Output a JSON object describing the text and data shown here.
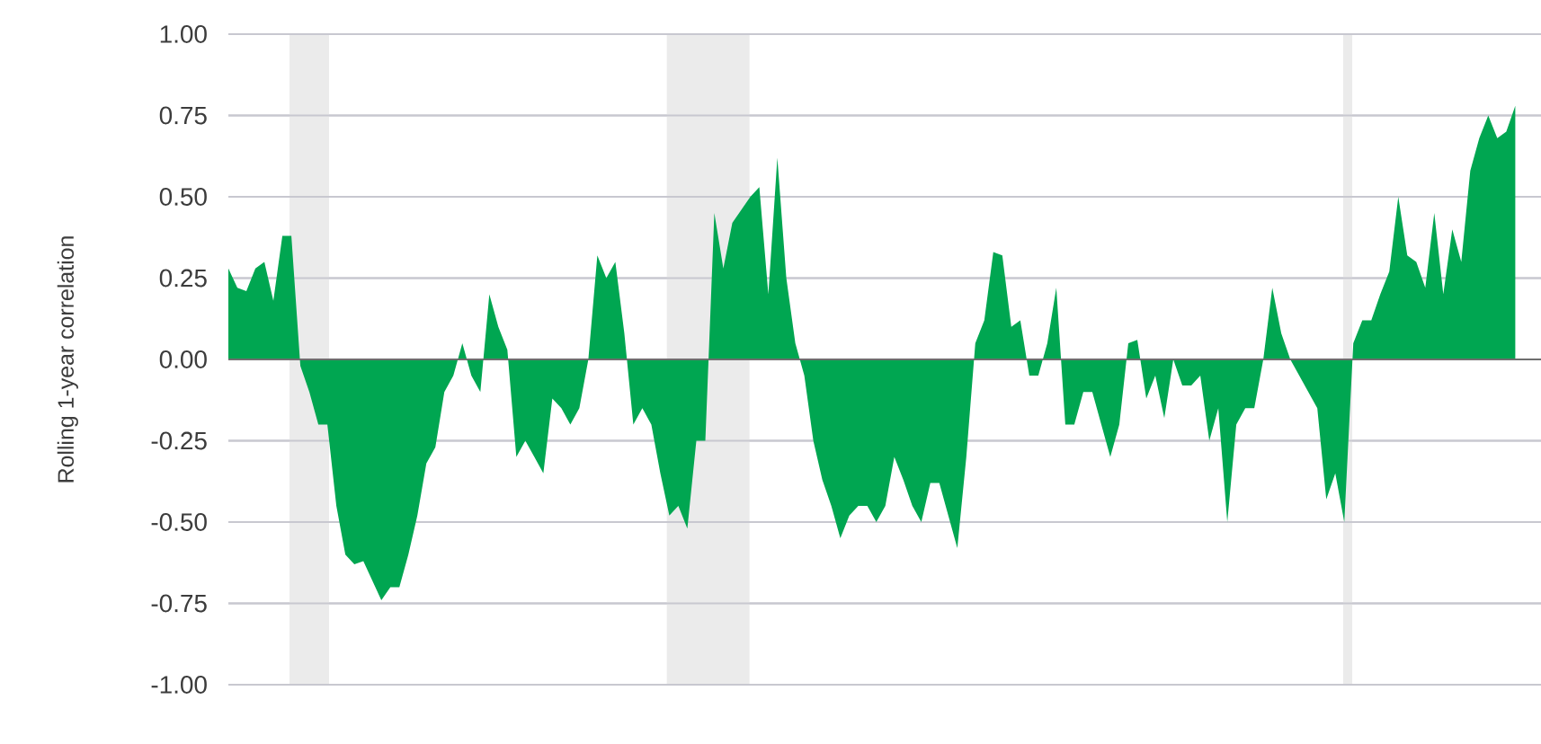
{
  "chart_data": {
    "type": "area",
    "ylabel": "Rolling 1-year correlation",
    "categories": [
      null,
      null,
      null,
      null,
      null,
      null,
      null,
      null,
      null,
      null,
      null,
      null,
      null,
      null,
      null,
      null,
      null,
      null,
      null,
      null,
      null,
      null,
      null,
      null,
      null,
      null,
      null,
      null,
      null,
      null,
      null,
      null,
      null,
      null,
      null,
      null,
      null,
      null,
      null,
      null,
      null,
      null,
      null,
      null,
      null,
      null,
      null,
      null,
      null,
      null,
      null,
      null,
      null,
      null,
      null,
      null,
      null,
      null,
      null,
      null,
      null,
      null,
      null,
      null,
      null,
      null,
      null,
      null,
      null,
      null,
      null,
      null,
      null,
      null,
      null,
      null,
      null,
      null,
      null,
      null,
      null,
      null,
      null,
      null,
      null,
      null,
      null,
      null,
      null,
      null,
      null,
      null,
      null,
      null,
      null,
      null,
      null,
      null,
      null,
      null,
      null,
      null,
      null,
      null,
      null,
      null,
      null,
      null,
      null,
      null,
      null,
      null,
      null,
      null,
      null,
      null,
      null,
      null,
      null,
      null,
      null,
      null,
      null,
      null,
      null,
      null,
      null,
      null,
      null,
      null,
      null,
      null,
      null,
      null,
      null,
      null,
      null,
      null,
      null,
      null,
      null,
      null,
      null,
      null
    ],
    "values": [
      0.28,
      0.22,
      0.21,
      0.28,
      0.3,
      0.18,
      0.38,
      0.38,
      -0.02,
      -0.1,
      -0.2,
      -0.2,
      -0.45,
      -0.6,
      -0.63,
      -0.62,
      -0.68,
      -0.74,
      -0.7,
      -0.7,
      -0.6,
      -0.48,
      -0.32,
      -0.27,
      -0.1,
      -0.05,
      0.05,
      -0.05,
      -0.1,
      0.2,
      0.1,
      0.03,
      -0.3,
      -0.25,
      -0.3,
      -0.35,
      -0.12,
      -0.15,
      -0.2,
      -0.15,
      0.0,
      0.32,
      0.25,
      0.3,
      0.08,
      -0.2,
      -0.15,
      -0.2,
      -0.35,
      -0.48,
      -0.45,
      -0.52,
      -0.25,
      -0.25,
      0.45,
      0.28,
      0.42,
      0.46,
      0.5,
      0.53,
      0.2,
      0.62,
      0.25,
      0.05,
      -0.05,
      -0.25,
      -0.37,
      -0.45,
      -0.55,
      -0.48,
      -0.45,
      -0.45,
      -0.5,
      -0.45,
      -0.3,
      -0.37,
      -0.45,
      -0.5,
      -0.38,
      -0.38,
      -0.48,
      -0.58,
      -0.3,
      0.05,
      0.12,
      0.33,
      0.32,
      0.1,
      0.12,
      -0.05,
      -0.05,
      0.05,
      0.22,
      -0.2,
      -0.2,
      -0.1,
      -0.1,
      -0.2,
      -0.3,
      -0.2,
      0.05,
      0.06,
      -0.12,
      -0.05,
      -0.18,
      0.0,
      -0.08,
      -0.08,
      -0.05,
      -0.25,
      -0.15,
      -0.5,
      -0.2,
      -0.15,
      -0.15,
      0.0,
      0.22,
      0.08,
      0.0,
      -0.05,
      -0.1,
      -0.15,
      -0.43,
      -0.35,
      -0.5,
      0.05,
      0.12,
      0.12,
      0.2,
      0.27,
      0.5,
      0.32,
      0.3,
      0.22,
      0.45,
      0.2,
      0.4,
      0.3,
      0.58,
      0.68,
      0.75,
      0.68,
      0.7,
      0.78
    ],
    "color": "#00a651",
    "ylim": [
      -1,
      1
    ],
    "yticks": [
      {
        "value": -1,
        "label": "-1.00"
      },
      {
        "value": -0.75,
        "label": "-0.75"
      },
      {
        "value": -0.5,
        "label": "-0.50"
      },
      {
        "value": -0.25,
        "label": "-0.25"
      },
      {
        "value": 0,
        "label": "0.00"
      },
      {
        "value": 0.25,
        "label": "0.25"
      },
      {
        "value": 0.5,
        "label": "0.50"
      },
      {
        "value": 0.75,
        "label": "0.75"
      },
      {
        "value": 1,
        "label": "1.00"
      }
    ],
    "grid": "y",
    "tick_labels": "y"
  }
}
